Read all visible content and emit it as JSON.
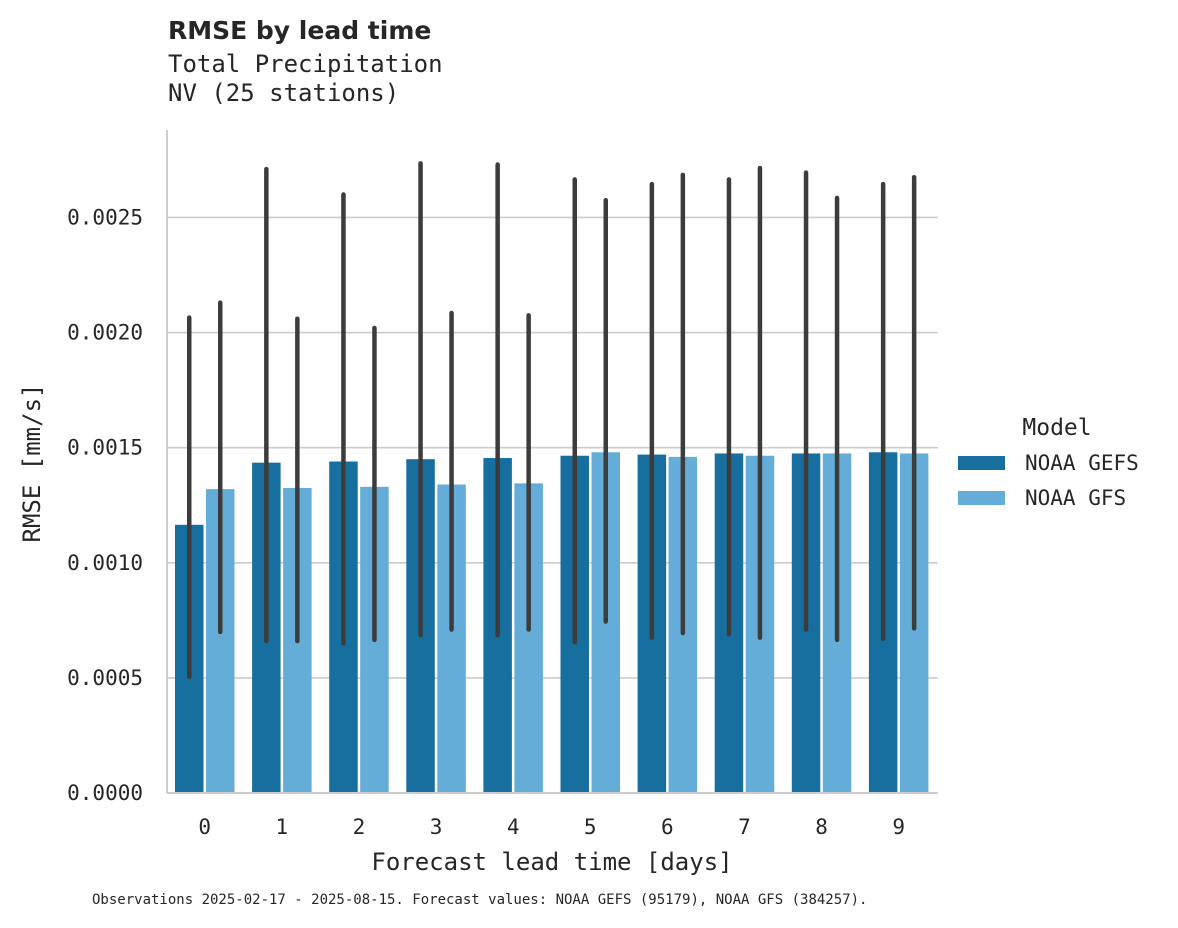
{
  "chart_data": {
    "type": "bar",
    "title": "RMSE by lead time",
    "subtitle_lines": [
      "Total Precipitation",
      "NV (25 stations)"
    ],
    "xlabel": "Forecast lead time [days]",
    "ylabel": "RMSE [mm/s]",
    "categories": [
      "0",
      "1",
      "2",
      "3",
      "4",
      "5",
      "6",
      "7",
      "8",
      "9"
    ],
    "ylim": [
      0,
      0.00288
    ],
    "yticks": [
      0.0,
      0.0005,
      0.001,
      0.0015,
      0.002,
      0.0025
    ],
    "ytick_labels": [
      "0.0000",
      "0.0005",
      "0.0010",
      "0.0015",
      "0.0020",
      "0.0025"
    ],
    "grid": "horizontal",
    "legend_title": "Model",
    "legend_position": "right",
    "series": [
      {
        "name": "NOAA GEFS",
        "color": "#176fa0",
        "values": [
          0.001165,
          0.001435,
          0.00144,
          0.00145,
          0.001455,
          0.001465,
          0.00147,
          0.001475,
          0.001475,
          0.00148
        ],
        "ci_low": [
          0.000505,
          0.00066,
          0.00065,
          0.000685,
          0.000685,
          0.000655,
          0.000675,
          0.00069,
          0.00071,
          0.00067
        ],
        "ci_high": [
          0.002065,
          0.00271,
          0.0026,
          0.002735,
          0.00273,
          0.002665,
          0.002645,
          0.002665,
          0.002695,
          0.002645
        ]
      },
      {
        "name": "NOAA GFS",
        "color": "#64add8",
        "values": [
          0.00132,
          0.001325,
          0.00133,
          0.00134,
          0.001345,
          0.00148,
          0.00146,
          0.001465,
          0.001475,
          0.001475
        ],
        "ci_low": [
          0.0007,
          0.00066,
          0.000665,
          0.00071,
          0.00071,
          0.000745,
          0.000695,
          0.000675,
          0.000665,
          0.000715
        ],
        "ci_high": [
          0.00213,
          0.00206,
          0.00202,
          0.002085,
          0.002075,
          0.002575,
          0.002685,
          0.002715,
          0.002585,
          0.002675
        ]
      }
    ]
  },
  "footnote": "Observations 2025-02-17 - 2025-08-15. Forecast values: NOAA GEFS (95179), NOAA GFS (384257).",
  "colors": {
    "grid": "#cccccc",
    "axis": "#cccccc",
    "error_bar": "#3c3c3c"
  }
}
